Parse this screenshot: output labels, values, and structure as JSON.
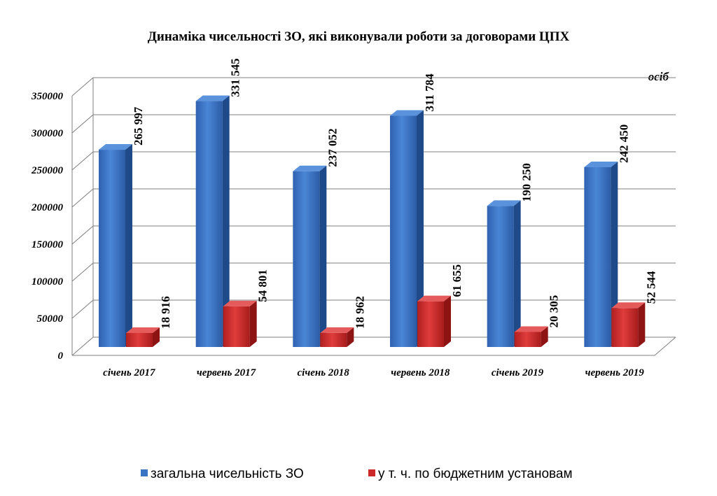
{
  "chart_data": {
    "type": "bar",
    "title": "Динаміка чисельності ЗО, які виконували роботи за договорами  ЦПХ",
    "unit_label": "осіб",
    "categories": [
      "січень 2017",
      "червень 2017",
      "січень 2018",
      "червень 2018",
      "січень 2019",
      "червень 2019"
    ],
    "series": [
      {
        "name": "загальна чисельність ЗО",
        "values": [
          265997,
          331545,
          237052,
          311784,
          190250,
          242450
        ],
        "labels": [
          "265 997",
          "331 545",
          "237 052",
          "311 784",
          "190 250",
          "242 450"
        ],
        "color": "#3b73c4"
      },
      {
        "name": "у т. ч. по  бюджетним установам",
        "values": [
          18916,
          54801,
          18962,
          61655,
          20305,
          52544
        ],
        "labels": [
          "18 916",
          "54 801",
          "18 962",
          "61 655",
          "20 305",
          "52 544"
        ],
        "color": "#cc2a2a"
      }
    ],
    "yticks": [
      "0",
      "50000",
      "100000",
      "150000",
      "200000",
      "250000",
      "300000",
      "350000"
    ],
    "ylim": [
      0,
      350000
    ],
    "grid": true,
    "legend_position": "bottom"
  }
}
